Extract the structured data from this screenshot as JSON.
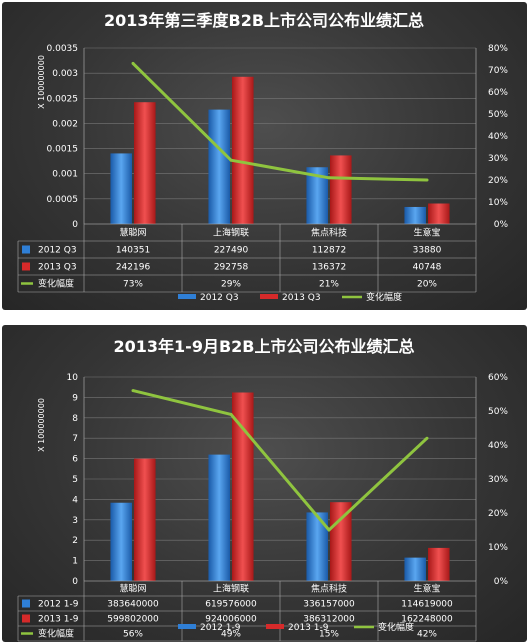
{
  "chart_data": [
    {
      "type": "bar",
      "title": "2013年第三季度B2B上市公司公布业绩汇总",
      "unit_label": "X 100000000",
      "categories": [
        "慧聪网",
        "上海钢联",
        "焦点科技",
        "生意宝"
      ],
      "y_ticks": [
        "0",
        "0.0005",
        "0.001",
        "0.0015",
        "0.002",
        "0.0025",
        "0.003",
        "0.0035"
      ],
      "y2_ticks": [
        "0%",
        "10%",
        "20%",
        "30%",
        "40%",
        "50%",
        "60%",
        "70%",
        "80%"
      ],
      "ylim": [
        0,
        0.0035
      ],
      "y2lim": [
        0,
        80
      ],
      "series": [
        {
          "name": "2012 Q3",
          "kind": "bar",
          "color": "#2f7fd6",
          "values": [
            0.00140351,
            0.0022749,
            0.00112872,
            0.0003388
          ],
          "labels": [
            "140351",
            "227490",
            "112872",
            "33880"
          ]
        },
        {
          "name": "2013 Q3",
          "kind": "bar",
          "color": "#d62a2a",
          "values": [
            0.00242196,
            0.00292758,
            0.00136372,
            0.00040748
          ],
          "labels": [
            "242196",
            "292758",
            "136372",
            "40748"
          ]
        },
        {
          "name": "变化幅度",
          "kind": "line",
          "axis": "right",
          "color": "#8fc43f",
          "values": [
            73,
            29,
            21,
            20
          ],
          "labels": [
            "73%",
            "29%",
            "21%",
            "20%"
          ]
        }
      ],
      "legend": "bottom"
    },
    {
      "type": "bar",
      "title": "2013年1-9月B2B上市公司公布业绩汇总",
      "unit_label": "X 100000000",
      "categories": [
        "慧聪网",
        "上海钢联",
        "焦点科技",
        "生意宝"
      ],
      "y_ticks": [
        "0",
        "1",
        "2",
        "3",
        "4",
        "5",
        "6",
        "7",
        "8",
        "9",
        "10"
      ],
      "y2_ticks": [
        "0%",
        "10%",
        "20%",
        "30%",
        "40%",
        "50%",
        "60%"
      ],
      "ylim": [
        0,
        10
      ],
      "y2lim": [
        0,
        60
      ],
      "series": [
        {
          "name": "2012 1-9",
          "kind": "bar",
          "color": "#2f7fd6",
          "values": [
            3.8364,
            6.19576,
            3.36157,
            1.14619
          ],
          "labels": [
            "383640000",
            "619576000",
            "336157000",
            "114619000"
          ]
        },
        {
          "name": "2013 1-9",
          "kind": "bar",
          "color": "#d62a2a",
          "values": [
            5.998,
            9.24006,
            3.86312,
            1.62248
          ],
          "labels": [
            "599802000",
            "924006000",
            "386312000",
            "162248000"
          ]
        },
        {
          "name": "变化幅度",
          "kind": "line",
          "axis": "right",
          "color": "#8fc43f",
          "values": [
            56,
            49,
            15,
            42
          ],
          "labels": [
            "56%",
            "49%",
            "15%",
            "42%"
          ]
        }
      ],
      "legend": "bottom"
    }
  ]
}
